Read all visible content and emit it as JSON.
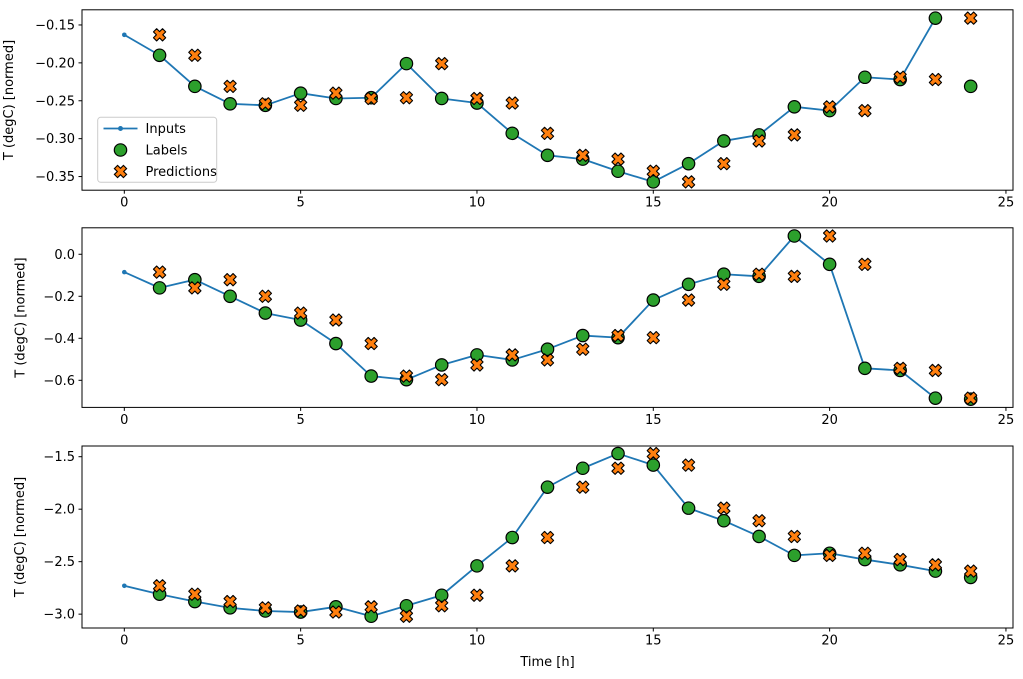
{
  "figure": {
    "xlabel": "Time [h]",
    "background": "#ffffff",
    "legend": {
      "position": "center-left-first-subplot",
      "items": [
        {
          "label": "Inputs",
          "marker": "line-with-dot",
          "color": "#1f77b4"
        },
        {
          "label": "Labels",
          "marker": "circle",
          "color": "#2ca02c",
          "edge_color": "#000000"
        },
        {
          "label": "Predictions",
          "marker": "x-cross",
          "color": "#ff7f0e",
          "edge_color": "#000000"
        }
      ]
    }
  },
  "chart_data": [
    {
      "type": "line",
      "title": "",
      "ylabel": "T (degC) [normed]",
      "xlabel": "",
      "xlim": [
        -1.2,
        25.2
      ],
      "ylim": [
        -0.368,
        -0.13
      ],
      "grid": false,
      "xticks": {
        "values": [
          0,
          5,
          10,
          15,
          20,
          25
        ],
        "labels": [
          "0",
          "5",
          "10",
          "15",
          "20",
          "25"
        ]
      },
      "yticks": {
        "values": [
          -0.15,
          -0.2,
          -0.25,
          -0.3,
          -0.35
        ],
        "labels": [
          "−0.15",
          "−0.20",
          "−0.25",
          "−0.30",
          "−0.35"
        ]
      },
      "series": [
        {
          "name": "Inputs",
          "style": "line",
          "color": "#1f77b4",
          "x": [
            0,
            1,
            2,
            3,
            4,
            5,
            6,
            7,
            8,
            9,
            10,
            11,
            12,
            13,
            14,
            15,
            16,
            17,
            18,
            19,
            20,
            21,
            22,
            23
          ],
          "y": [
            -0.163,
            -0.19,
            -0.231,
            -0.254,
            -0.256,
            -0.24,
            -0.247,
            -0.246,
            -0.201,
            -0.247,
            -0.253,
            -0.293,
            -0.322,
            -0.327,
            -0.343,
            -0.357,
            -0.333,
            -0.303,
            -0.295,
            -0.258,
            -0.263,
            -0.219,
            -0.222,
            -0.141
          ]
        },
        {
          "name": "Labels",
          "style": "scatter-circle",
          "color": "#2ca02c",
          "edge_color": "#000000",
          "x": [
            1,
            2,
            3,
            4,
            5,
            6,
            7,
            8,
            9,
            10,
            11,
            12,
            13,
            14,
            15,
            16,
            17,
            18,
            19,
            20,
            21,
            22,
            23,
            24
          ],
          "y": [
            -0.19,
            -0.231,
            -0.254,
            -0.256,
            -0.24,
            -0.247,
            -0.246,
            -0.201,
            -0.247,
            -0.253,
            -0.293,
            -0.322,
            -0.327,
            -0.343,
            -0.357,
            -0.333,
            -0.303,
            -0.295,
            -0.258,
            -0.263,
            -0.219,
            -0.222,
            -0.141,
            -0.231
          ]
        },
        {
          "name": "Predictions",
          "style": "scatter-x",
          "color": "#ff7f0e",
          "edge_color": "#000000",
          "x": [
            1,
            2,
            3,
            4,
            5,
            6,
            7,
            8,
            9,
            10,
            11,
            12,
            13,
            14,
            15,
            16,
            17,
            18,
            19,
            20,
            21,
            22,
            23,
            24
          ],
          "y": [
            -0.163,
            -0.19,
            -0.231,
            -0.254,
            -0.256,
            -0.24,
            -0.247,
            -0.246,
            -0.201,
            -0.247,
            -0.253,
            -0.293,
            -0.322,
            -0.327,
            -0.343,
            -0.357,
            -0.333,
            -0.303,
            -0.295,
            -0.258,
            -0.263,
            -0.219,
            -0.222,
            -0.141
          ]
        }
      ]
    },
    {
      "type": "line",
      "title": "",
      "ylabel": "T (degC) [normed]",
      "xlabel": "",
      "xlim": [
        -1.2,
        25.2
      ],
      "ylim": [
        -0.729,
        0.126
      ],
      "grid": false,
      "xticks": {
        "values": [
          0,
          5,
          10,
          15,
          20,
          25
        ],
        "labels": [
          "0",
          "5",
          "10",
          "15",
          "20",
          "25"
        ]
      },
      "yticks": {
        "values": [
          0.0,
          -0.2,
          -0.4,
          -0.6
        ],
        "labels": [
          "0.0",
          "−0.2",
          "−0.4",
          "−0.6"
        ]
      },
      "series": [
        {
          "name": "Inputs",
          "style": "line",
          "color": "#1f77b4",
          "x": [
            0,
            1,
            2,
            3,
            4,
            5,
            6,
            7,
            8,
            9,
            10,
            11,
            12,
            13,
            14,
            15,
            16,
            17,
            18,
            19,
            20,
            21,
            22,
            23
          ],
          "y": [
            -0.085,
            -0.16,
            -0.121,
            -0.2,
            -0.28,
            -0.313,
            -0.425,
            -0.58,
            -0.597,
            -0.527,
            -0.479,
            -0.503,
            -0.452,
            -0.387,
            -0.397,
            -0.218,
            -0.143,
            -0.095,
            -0.105,
            0.087,
            -0.048,
            -0.543,
            -0.553,
            -0.685
          ]
        },
        {
          "name": "Labels",
          "style": "scatter-circle",
          "color": "#2ca02c",
          "edge_color": "#000000",
          "x": [
            1,
            2,
            3,
            4,
            5,
            6,
            7,
            8,
            9,
            10,
            11,
            12,
            13,
            14,
            15,
            16,
            17,
            18,
            19,
            20,
            21,
            22,
            23,
            24
          ],
          "y": [
            -0.16,
            -0.121,
            -0.2,
            -0.28,
            -0.313,
            -0.425,
            -0.58,
            -0.597,
            -0.527,
            -0.479,
            -0.503,
            -0.452,
            -0.387,
            -0.397,
            -0.218,
            -0.143,
            -0.095,
            -0.105,
            0.087,
            -0.048,
            -0.543,
            -0.553,
            -0.685,
            -0.69
          ]
        },
        {
          "name": "Predictions",
          "style": "scatter-x",
          "color": "#ff7f0e",
          "edge_color": "#000000",
          "x": [
            1,
            2,
            3,
            4,
            5,
            6,
            7,
            8,
            9,
            10,
            11,
            12,
            13,
            14,
            15,
            16,
            17,
            18,
            19,
            20,
            21,
            22,
            23,
            24
          ],
          "y": [
            -0.085,
            -0.16,
            -0.121,
            -0.2,
            -0.28,
            -0.313,
            -0.425,
            -0.58,
            -0.597,
            -0.527,
            -0.479,
            -0.503,
            -0.452,
            -0.387,
            -0.397,
            -0.218,
            -0.143,
            -0.095,
            -0.105,
            0.087,
            -0.048,
            -0.543,
            -0.553,
            -0.685
          ]
        }
      ]
    },
    {
      "type": "line",
      "title": "",
      "ylabel": "T (degC) [normed]",
      "xlabel": "Time [h]",
      "xlim": [
        -1.2,
        25.2
      ],
      "ylim": [
        -3.132,
        -1.398
      ],
      "grid": false,
      "xticks": {
        "values": [
          0,
          5,
          10,
          15,
          20,
          25
        ],
        "labels": [
          "0",
          "5",
          "10",
          "15",
          "20",
          "25"
        ]
      },
      "yticks": {
        "values": [
          -1.5,
          -2.0,
          -2.5,
          -3.0
        ],
        "labels": [
          "−1.5",
          "−2.0",
          "−2.5",
          "−3.0"
        ]
      },
      "series": [
        {
          "name": "Inputs",
          "style": "line",
          "color": "#1f77b4",
          "x": [
            0,
            1,
            2,
            3,
            4,
            5,
            6,
            7,
            8,
            9,
            10,
            11,
            12,
            13,
            14,
            15,
            16,
            17,
            18,
            19,
            20,
            21,
            22,
            23
          ],
          "y": [
            -2.73,
            -2.81,
            -2.88,
            -2.94,
            -2.97,
            -2.98,
            -2.93,
            -3.02,
            -2.92,
            -2.82,
            -2.54,
            -2.27,
            -1.79,
            -1.61,
            -1.47,
            -1.58,
            -1.99,
            -2.11,
            -2.26,
            -2.44,
            -2.42,
            -2.48,
            -2.53,
            -2.59
          ]
        },
        {
          "name": "Labels",
          "style": "scatter-circle",
          "color": "#2ca02c",
          "edge_color": "#000000",
          "x": [
            1,
            2,
            3,
            4,
            5,
            6,
            7,
            8,
            9,
            10,
            11,
            12,
            13,
            14,
            15,
            16,
            17,
            18,
            19,
            20,
            21,
            22,
            23,
            24
          ],
          "y": [
            -2.81,
            -2.88,
            -2.94,
            -2.97,
            -2.98,
            -2.93,
            -3.02,
            -2.92,
            -2.82,
            -2.54,
            -2.27,
            -1.79,
            -1.61,
            -1.47,
            -1.58,
            -1.99,
            -2.11,
            -2.26,
            -2.44,
            -2.42,
            -2.48,
            -2.53,
            -2.59,
            -2.65
          ]
        },
        {
          "name": "Predictions",
          "style": "scatter-x",
          "color": "#ff7f0e",
          "edge_color": "#000000",
          "x": [
            1,
            2,
            3,
            4,
            5,
            6,
            7,
            8,
            9,
            10,
            11,
            12,
            13,
            14,
            15,
            16,
            17,
            18,
            19,
            20,
            21,
            22,
            23,
            24
          ],
          "y": [
            -2.73,
            -2.81,
            -2.88,
            -2.94,
            -2.97,
            -2.98,
            -2.93,
            -3.02,
            -2.92,
            -2.82,
            -2.54,
            -2.27,
            -1.79,
            -1.61,
            -1.47,
            -1.58,
            -1.99,
            -2.11,
            -2.26,
            -2.44,
            -2.42,
            -2.48,
            -2.53,
            -2.59
          ]
        }
      ]
    }
  ]
}
